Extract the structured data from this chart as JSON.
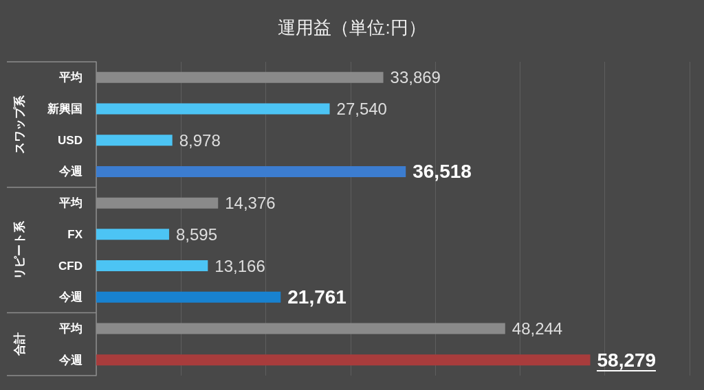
{
  "chart_data": {
    "type": "bar",
    "orientation": "horizontal",
    "title": "運用益（単位:円）",
    "categories": [
      "平均",
      "新興国",
      "USD",
      "今週",
      "平均",
      "FX",
      "CFD",
      "今週",
      "平均",
      "今週"
    ],
    "values": [
      33869,
      27540,
      8978,
      36518,
      14376,
      8595,
      13166,
      21761,
      48244,
      58279
    ],
    "value_labels": [
      "33,869",
      "27,540",
      "8,978",
      "36,518",
      "14,376",
      "8,595",
      "13,166",
      "21,761",
      "48,244",
      "58,279"
    ],
    "colors": [
      "#8a8a8a",
      "#4cc4f4",
      "#4cc4f4",
      "#3c7dd0",
      "#8a8a8a",
      "#4cc4f4",
      "#4cc4f4",
      "#1882d0",
      "#8a8a8a",
      "#a83c3c"
    ],
    "tick_labels": "y",
    "grid": "x",
    "annotations": [
      "スワップ系",
      "リピート系",
      "合計"
    ]
  }
}
